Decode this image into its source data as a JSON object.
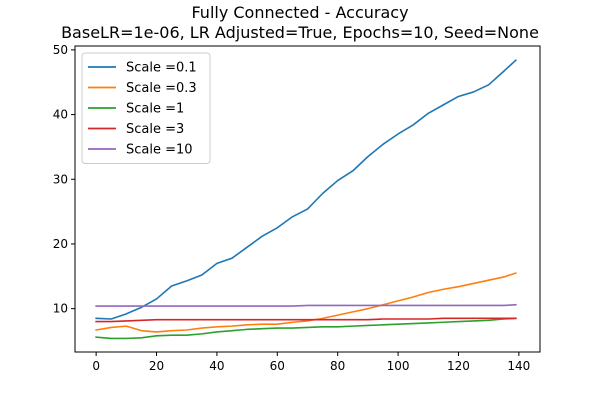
{
  "figure": {
    "title_line1": "Fully Connected - Accuracy",
    "title_line2": "BaseLR=1e-06, LR Adjusted=True, Epochs=10, Seed=None"
  },
  "chart_data": {
    "type": "line",
    "title": "Fully Connected - Accuracy",
    "subtitle": "BaseLR=1e-06, LR Adjusted=True, Epochs=10, Seed=None",
    "xlabel": "",
    "ylabel": "",
    "xlim": [
      -7,
      147
    ],
    "ylim": [
      3.3,
      50.6
    ],
    "xticks": [
      0,
      20,
      40,
      60,
      80,
      100,
      120,
      140
    ],
    "yticks": [
      10,
      20,
      30,
      40,
      50
    ],
    "grid": false,
    "legend": "top-left",
    "x": [
      0,
      5,
      10,
      15,
      20,
      25,
      30,
      35,
      40,
      45,
      50,
      55,
      60,
      65,
      70,
      75,
      80,
      85,
      90,
      95,
      100,
      105,
      110,
      115,
      120,
      125,
      130,
      135,
      139
    ],
    "series": [
      {
        "name": "Scale =0.1",
        "color": "#1f77b4",
        "values": [
          8.5,
          8.4,
          9.2,
          10.2,
          11.5,
          13.5,
          14.3,
          15.2,
          17.0,
          17.8,
          19.5,
          21.2,
          22.5,
          24.2,
          25.4,
          27.8,
          29.8,
          31.3,
          33.5,
          35.4,
          37.0,
          38.4,
          40.2,
          41.5,
          42.8,
          43.5,
          44.6,
          46.7,
          48.4
        ]
      },
      {
        "name": "Scale =0.3",
        "color": "#ff7f0e",
        "values": [
          6.7,
          7.1,
          7.3,
          6.6,
          6.4,
          6.6,
          6.7,
          7.0,
          7.2,
          7.3,
          7.5,
          7.6,
          7.6,
          7.9,
          8.1,
          8.5,
          9.0,
          9.5,
          10.0,
          10.6,
          11.2,
          11.8,
          12.5,
          13.0,
          13.4,
          13.9,
          14.4,
          14.9,
          15.5
        ]
      },
      {
        "name": "Scale =1",
        "color": "#2ca02c",
        "values": [
          5.6,
          5.4,
          5.4,
          5.5,
          5.8,
          5.9,
          5.9,
          6.1,
          6.4,
          6.6,
          6.8,
          6.9,
          7.0,
          7.0,
          7.1,
          7.2,
          7.2,
          7.3,
          7.4,
          7.5,
          7.6,
          7.7,
          7.8,
          7.9,
          8.0,
          8.1,
          8.2,
          8.4,
          8.5
        ]
      },
      {
        "name": "Scale =3",
        "color": "#d62728",
        "values": [
          8.0,
          8.0,
          8.1,
          8.2,
          8.3,
          8.3,
          8.3,
          8.3,
          8.3,
          8.3,
          8.3,
          8.3,
          8.3,
          8.3,
          8.3,
          8.3,
          8.3,
          8.3,
          8.3,
          8.4,
          8.4,
          8.4,
          8.4,
          8.5,
          8.5,
          8.5,
          8.5,
          8.5,
          8.5
        ]
      },
      {
        "name": "Scale =10",
        "color": "#9467bd",
        "values": [
          10.4,
          10.4,
          10.4,
          10.4,
          10.4,
          10.4,
          10.4,
          10.4,
          10.4,
          10.4,
          10.4,
          10.4,
          10.4,
          10.4,
          10.5,
          10.5,
          10.5,
          10.5,
          10.5,
          10.5,
          10.5,
          10.5,
          10.5,
          10.5,
          10.5,
          10.5,
          10.5,
          10.5,
          10.6
        ]
      }
    ]
  }
}
